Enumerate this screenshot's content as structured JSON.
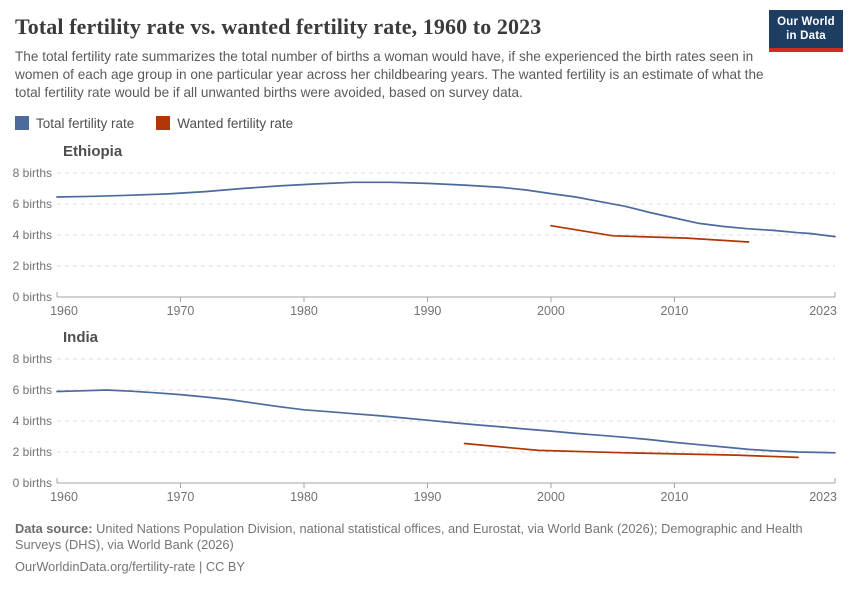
{
  "header": {
    "title": "Total fertility rate vs. wanted fertility rate, 1960 to 2023",
    "subtitle": "The total fertility rate summarizes the total number of births a woman would have, if she experienced the birth rates seen in women of each age group in one particular year across her childbearing years. The wanted fertility is an estimate of what the total fertility rate would be if all unwanted births were avoided, based on survey data.",
    "logo": {
      "line1": "Our World",
      "line2": "in Data",
      "bg_color": "#1d3d63",
      "accent_color": "#cf2d1f"
    }
  },
  "legend": {
    "items": [
      {
        "label": "Total fertility rate",
        "color": "#4C6A9C"
      },
      {
        "label": "Wanted fertility rate",
        "color": "#B13507"
      }
    ]
  },
  "chart_data": [
    {
      "type": "line",
      "title": "Ethiopia",
      "xlabel": "",
      "ylabel": "births",
      "x_range": [
        1960,
        2023
      ],
      "x_ticks": [
        1960,
        1970,
        1980,
        1990,
        2000,
        2010,
        2023
      ],
      "y_ticks": [
        0,
        2,
        4,
        6,
        8
      ],
      "y_tick_suffix": " births",
      "ylim": [
        0,
        8.6
      ],
      "grid": "horizontal-dashed",
      "legend_position": "top-of-figure",
      "series": [
        {
          "name": "Total fertility rate",
          "color": "#4C6A9C",
          "points": [
            [
              1960,
              6.45
            ],
            [
              1963,
              6.5
            ],
            [
              1966,
              6.57
            ],
            [
              1969,
              6.65
            ],
            [
              1972,
              6.8
            ],
            [
              1975,
              7.0
            ],
            [
              1978,
              7.17
            ],
            [
              1981,
              7.3
            ],
            [
              1984,
              7.4
            ],
            [
              1987,
              7.4
            ],
            [
              1990,
              7.33
            ],
            [
              1993,
              7.22
            ],
            [
              1996,
              7.07
            ],
            [
              1998,
              6.9
            ],
            [
              2000,
              6.67
            ],
            [
              2002,
              6.45
            ],
            [
              2004,
              6.15
            ],
            [
              2006,
              5.85
            ],
            [
              2008,
              5.45
            ],
            [
              2010,
              5.1
            ],
            [
              2012,
              4.75
            ],
            [
              2014,
              4.55
            ],
            [
              2016,
              4.4
            ],
            [
              2018,
              4.3
            ],
            [
              2020,
              4.15
            ],
            [
              2021,
              4.1
            ],
            [
              2023,
              3.9
            ]
          ]
        },
        {
          "name": "Wanted fertility rate",
          "color": "#B13507",
          "points": [
            [
              2000,
              4.6
            ],
            [
              2005,
              3.95
            ],
            [
              2011,
              3.8
            ],
            [
              2016,
              3.55
            ]
          ]
        }
      ]
    },
    {
      "type": "line",
      "title": "India",
      "xlabel": "",
      "ylabel": "births",
      "x_range": [
        1960,
        2023
      ],
      "x_ticks": [
        1960,
        1970,
        1980,
        1990,
        2000,
        2010,
        2023
      ],
      "y_ticks": [
        0,
        2,
        4,
        6,
        8
      ],
      "y_tick_suffix": " births",
      "ylim": [
        0,
        8.6
      ],
      "grid": "horizontal-dashed",
      "legend_position": "top-of-figure",
      "series": [
        {
          "name": "Total fertility rate",
          "color": "#4C6A9C",
          "points": [
            [
              1960,
              5.9
            ],
            [
              1962,
              5.95
            ],
            [
              1964,
              6.0
            ],
            [
              1966,
              5.92
            ],
            [
              1968,
              5.82
            ],
            [
              1970,
              5.7
            ],
            [
              1972,
              5.55
            ],
            [
              1974,
              5.38
            ],
            [
              1976,
              5.15
            ],
            [
              1978,
              4.92
            ],
            [
              1980,
              4.72
            ],
            [
              1982,
              4.6
            ],
            [
              1984,
              4.47
            ],
            [
              1986,
              4.35
            ],
            [
              1988,
              4.2
            ],
            [
              1990,
              4.05
            ],
            [
              1992,
              3.9
            ],
            [
              1994,
              3.75
            ],
            [
              1996,
              3.62
            ],
            [
              1998,
              3.48
            ],
            [
              2000,
              3.35
            ],
            [
              2002,
              3.2
            ],
            [
              2004,
              3.08
            ],
            [
              2006,
              2.95
            ],
            [
              2008,
              2.8
            ],
            [
              2010,
              2.62
            ],
            [
              2012,
              2.47
            ],
            [
              2014,
              2.32
            ],
            [
              2016,
              2.17
            ],
            [
              2018,
              2.07
            ],
            [
              2020,
              2.0
            ],
            [
              2022,
              1.97
            ],
            [
              2023,
              1.95
            ]
          ]
        },
        {
          "name": "Wanted fertility rate",
          "color": "#B13507",
          "points": [
            [
              1993,
              2.55
            ],
            [
              1999,
              2.1
            ],
            [
              2006,
              1.95
            ],
            [
              2015,
              1.8
            ],
            [
              2020,
              1.65
            ]
          ]
        }
      ]
    }
  ],
  "footer": {
    "source_label": "Data source:",
    "source_text": " United Nations Population Division, national statistical offices, and Eurostat, via World Bank (2026); Demographic and Health Surveys (DHS), via World Bank (2026)",
    "note": "OurWorldinData.org/fertility-rate | CC BY"
  },
  "style": {
    "gridline_color": "#dcdcdc",
    "axis_color": "#a3a3a3",
    "tick_label_color": "#737373"
  }
}
